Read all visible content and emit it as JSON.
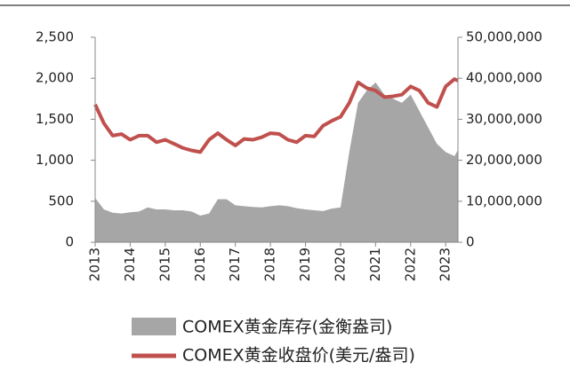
{
  "chart_data": {
    "type": "area-line",
    "x": [
      2013,
      2013.25,
      2013.5,
      2013.75,
      2014,
      2014.25,
      2014.5,
      2014.75,
      2015,
      2015.25,
      2015.5,
      2015.75,
      2016,
      2016.25,
      2016.5,
      2016.75,
      2017,
      2017.25,
      2017.5,
      2017.75,
      2018,
      2018.25,
      2018.5,
      2018.75,
      2019,
      2019.25,
      2019.5,
      2019.75,
      2020,
      2020.25,
      2020.5,
      2020.75,
      2021,
      2021.25,
      2021.5,
      2021.75,
      2022,
      2022.25,
      2022.5,
      2022.75,
      2023,
      2023.25,
      2023.35
    ],
    "series": [
      {
        "name": "COMEX黄金库存(金衡盎司)",
        "color": "#a6a6a6",
        "axis": "y2",
        "values": [
          10800000,
          8000000,
          7200000,
          7000000,
          7300000,
          7500000,
          8500000,
          8000000,
          8000000,
          7800000,
          7800000,
          7500000,
          6500000,
          7000000,
          10500000,
          10500000,
          9000000,
          8800000,
          8600000,
          8500000,
          8800000,
          9000000,
          8800000,
          8300000,
          8000000,
          7800000,
          7600000,
          8200000,
          8500000,
          22000000,
          34000000,
          37000000,
          39000000,
          36000000,
          35000000,
          34000000,
          36000000,
          32000000,
          28000000,
          24000000,
          22000000,
          21000000,
          22500000
        ]
      },
      {
        "name": "COMEX黄金收盘价(美元/盎司)",
        "color": "#c0504d",
        "axis": "y",
        "values": [
          1680,
          1450,
          1300,
          1320,
          1250,
          1300,
          1300,
          1220,
          1250,
          1200,
          1150,
          1120,
          1100,
          1250,
          1330,
          1250,
          1180,
          1260,
          1250,
          1280,
          1330,
          1320,
          1250,
          1220,
          1300,
          1290,
          1420,
          1480,
          1530,
          1700,
          1950,
          1880,
          1850,
          1770,
          1780,
          1800,
          1900,
          1850,
          1700,
          1650,
          1900,
          1990,
          1970
        ]
      }
    ],
    "xlim": [
      2013,
      2023.35
    ],
    "xticks": [
      2013,
      2014,
      2015,
      2016,
      2017,
      2018,
      2019,
      2020,
      2021,
      2022,
      2023
    ],
    "ylim": [
      0,
      2500
    ],
    "yticks": [
      0,
      500,
      {
        "value": 1000,
        "label": "1,000"
      },
      {
        "value": 1500,
        "label": "1,500"
      },
      {
        "value": 2000,
        "label": "2,000"
      },
      {
        "value": 2500,
        "label": "2,500"
      }
    ],
    "y2lim": [
      0,
      50000000
    ],
    "y2ticks": [
      0,
      {
        "value": 10000000,
        "label": "10,000,000"
      },
      {
        "value": 20000000,
        "label": "20,000,000"
      },
      {
        "value": 30000000,
        "label": "30,000,000"
      },
      {
        "value": 40000000,
        "label": "40,000,000"
      },
      {
        "value": 50000000,
        "label": "50,000,000"
      }
    ]
  }
}
